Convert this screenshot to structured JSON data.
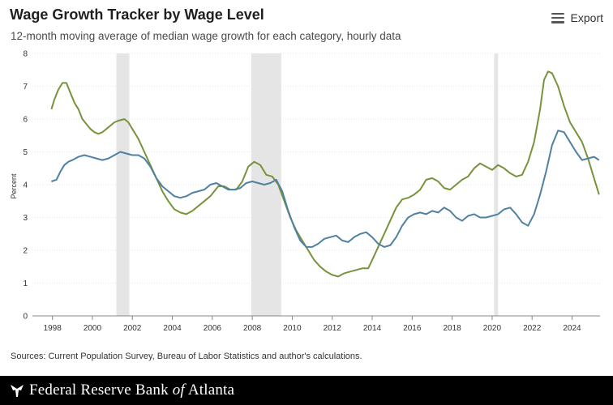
{
  "header": {
    "title": "Wage Growth Tracker by Wage Level",
    "subtitle": "12-month moving average of median wage growth for each category, hourly data",
    "export_label": "Export"
  },
  "footer": {
    "sources": "Sources: Current Population Survey, Bureau of Labor Statistics and author's calculations.",
    "bank_name_prefix": "Federal Reserve Bank",
    "bank_name_of": "of",
    "bank_name_suffix": "Atlanta"
  },
  "colors": {
    "green": "#77933C",
    "blue": "#4F81A0",
    "recession": "#E5E5E5"
  },
  "chart_data": {
    "type": "line",
    "ylabel": "Percent",
    "ylim": [
      0,
      8
    ],
    "xlim": [
      1997.0,
      2025.4
    ],
    "yticks": [
      0,
      1,
      2,
      3,
      4,
      5,
      6,
      7,
      8
    ],
    "xticks": [
      1998,
      2000,
      2002,
      2004,
      2006,
      2008,
      2010,
      2012,
      2014,
      2016,
      2018,
      2020,
      2022,
      2024
    ],
    "recessions": [
      [
        2001.2,
        2001.85
      ],
      [
        2007.95,
        2009.45
      ],
      [
        2020.1,
        2020.3
      ]
    ],
    "series": [
      {
        "color_key": "green",
        "points": [
          [
            1997.95,
            6.3
          ],
          [
            1998.1,
            6.6
          ],
          [
            1998.3,
            6.9
          ],
          [
            1998.5,
            7.1
          ],
          [
            1998.7,
            7.1
          ],
          [
            1998.9,
            6.8
          ],
          [
            1999.1,
            6.5
          ],
          [
            1999.3,
            6.3
          ],
          [
            1999.5,
            6.0
          ],
          [
            1999.7,
            5.85
          ],
          [
            1999.9,
            5.7
          ],
          [
            2000.1,
            5.6
          ],
          [
            2000.3,
            5.55
          ],
          [
            2000.5,
            5.6
          ],
          [
            2000.7,
            5.7
          ],
          [
            2000.9,
            5.8
          ],
          [
            2001.1,
            5.9
          ],
          [
            2001.3,
            5.95
          ],
          [
            2001.6,
            6.0
          ],
          [
            2001.8,
            5.9
          ],
          [
            2002.0,
            5.7
          ],
          [
            2002.3,
            5.4
          ],
          [
            2002.6,
            5.0
          ],
          [
            2002.9,
            4.6
          ],
          [
            2003.2,
            4.2
          ],
          [
            2003.5,
            3.8
          ],
          [
            2003.8,
            3.5
          ],
          [
            2004.1,
            3.25
          ],
          [
            2004.4,
            3.15
          ],
          [
            2004.7,
            3.1
          ],
          [
            2005.0,
            3.2
          ],
          [
            2005.3,
            3.35
          ],
          [
            2005.6,
            3.5
          ],
          [
            2005.9,
            3.65
          ],
          [
            2006.1,
            3.8
          ],
          [
            2006.3,
            3.95
          ],
          [
            2006.6,
            3.95
          ],
          [
            2006.9,
            3.85
          ],
          [
            2007.2,
            3.85
          ],
          [
            2007.5,
            4.1
          ],
          [
            2007.8,
            4.55
          ],
          [
            2008.1,
            4.7
          ],
          [
            2008.4,
            4.6
          ],
          [
            2008.7,
            4.3
          ],
          [
            2009.0,
            4.25
          ],
          [
            2009.3,
            4.0
          ],
          [
            2009.6,
            3.5
          ],
          [
            2009.9,
            3.0
          ],
          [
            2010.2,
            2.6
          ],
          [
            2010.5,
            2.3
          ],
          [
            2010.8,
            2.0
          ],
          [
            2011.1,
            1.7
          ],
          [
            2011.4,
            1.5
          ],
          [
            2011.7,
            1.35
          ],
          [
            2012.0,
            1.25
          ],
          [
            2012.3,
            1.2
          ],
          [
            2012.6,
            1.3
          ],
          [
            2012.9,
            1.35
          ],
          [
            2013.2,
            1.4
          ],
          [
            2013.5,
            1.45
          ],
          [
            2013.8,
            1.45
          ],
          [
            2014.0,
            1.7
          ],
          [
            2014.3,
            2.1
          ],
          [
            2014.6,
            2.5
          ],
          [
            2014.9,
            2.9
          ],
          [
            2015.2,
            3.3
          ],
          [
            2015.5,
            3.55
          ],
          [
            2015.8,
            3.6
          ],
          [
            2016.1,
            3.7
          ],
          [
            2016.4,
            3.85
          ],
          [
            2016.7,
            4.15
          ],
          [
            2017.0,
            4.2
          ],
          [
            2017.3,
            4.1
          ],
          [
            2017.6,
            3.9
          ],
          [
            2017.9,
            3.85
          ],
          [
            2018.2,
            4.0
          ],
          [
            2018.5,
            4.15
          ],
          [
            2018.8,
            4.25
          ],
          [
            2019.1,
            4.5
          ],
          [
            2019.4,
            4.65
          ],
          [
            2019.7,
            4.55
          ],
          [
            2020.0,
            4.45
          ],
          [
            2020.3,
            4.6
          ],
          [
            2020.6,
            4.5
          ],
          [
            2020.9,
            4.35
          ],
          [
            2021.2,
            4.25
          ],
          [
            2021.5,
            4.3
          ],
          [
            2021.8,
            4.7
          ],
          [
            2022.1,
            5.3
          ],
          [
            2022.4,
            6.3
          ],
          [
            2022.6,
            7.2
          ],
          [
            2022.8,
            7.45
          ],
          [
            2023.0,
            7.4
          ],
          [
            2023.3,
            7.0
          ],
          [
            2023.6,
            6.4
          ],
          [
            2023.9,
            5.9
          ],
          [
            2024.2,
            5.6
          ],
          [
            2024.5,
            5.3
          ],
          [
            2024.8,
            4.8
          ],
          [
            2025.1,
            4.2
          ],
          [
            2025.35,
            3.7
          ]
        ]
      },
      {
        "color_key": "blue",
        "points": [
          [
            1997.95,
            4.1
          ],
          [
            1998.2,
            4.15
          ],
          [
            1998.4,
            4.4
          ],
          [
            1998.6,
            4.6
          ],
          [
            1998.8,
            4.7
          ],
          [
            1999.0,
            4.75
          ],
          [
            1999.3,
            4.85
          ],
          [
            1999.6,
            4.9
          ],
          [
            1999.9,
            4.85
          ],
          [
            2000.2,
            4.8
          ],
          [
            2000.5,
            4.75
          ],
          [
            2000.8,
            4.8
          ],
          [
            2001.1,
            4.9
          ],
          [
            2001.4,
            5.0
          ],
          [
            2001.7,
            4.95
          ],
          [
            2002.0,
            4.9
          ],
          [
            2002.3,
            4.9
          ],
          [
            2002.6,
            4.8
          ],
          [
            2002.9,
            4.55
          ],
          [
            2003.2,
            4.2
          ],
          [
            2003.5,
            3.95
          ],
          [
            2003.8,
            3.8
          ],
          [
            2004.1,
            3.65
          ],
          [
            2004.4,
            3.6
          ],
          [
            2004.7,
            3.65
          ],
          [
            2005.0,
            3.75
          ],
          [
            2005.3,
            3.8
          ],
          [
            2005.6,
            3.85
          ],
          [
            2005.9,
            4.0
          ],
          [
            2006.2,
            4.05
          ],
          [
            2006.5,
            3.95
          ],
          [
            2006.8,
            3.85
          ],
          [
            2007.1,
            3.85
          ],
          [
            2007.4,
            3.9
          ],
          [
            2007.7,
            4.05
          ],
          [
            2008.0,
            4.1
          ],
          [
            2008.3,
            4.05
          ],
          [
            2008.6,
            4.0
          ],
          [
            2008.9,
            4.05
          ],
          [
            2009.2,
            4.15
          ],
          [
            2009.5,
            3.8
          ],
          [
            2009.8,
            3.2
          ],
          [
            2010.1,
            2.7
          ],
          [
            2010.4,
            2.3
          ],
          [
            2010.7,
            2.1
          ],
          [
            2011.0,
            2.1
          ],
          [
            2011.3,
            2.2
          ],
          [
            2011.6,
            2.35
          ],
          [
            2011.9,
            2.4
          ],
          [
            2012.2,
            2.45
          ],
          [
            2012.5,
            2.3
          ],
          [
            2012.8,
            2.25
          ],
          [
            2013.1,
            2.4
          ],
          [
            2013.4,
            2.5
          ],
          [
            2013.7,
            2.55
          ],
          [
            2014.0,
            2.4
          ],
          [
            2014.3,
            2.2
          ],
          [
            2014.6,
            2.1
          ],
          [
            2014.9,
            2.15
          ],
          [
            2015.2,
            2.4
          ],
          [
            2015.5,
            2.75
          ],
          [
            2015.8,
            3.0
          ],
          [
            2016.1,
            3.1
          ],
          [
            2016.4,
            3.15
          ],
          [
            2016.7,
            3.1
          ],
          [
            2017.0,
            3.2
          ],
          [
            2017.3,
            3.15
          ],
          [
            2017.6,
            3.3
          ],
          [
            2017.9,
            3.2
          ],
          [
            2018.2,
            3.0
          ],
          [
            2018.5,
            2.9
          ],
          [
            2018.8,
            3.05
          ],
          [
            2019.1,
            3.1
          ],
          [
            2019.4,
            3.0
          ],
          [
            2019.7,
            3.0
          ],
          [
            2020.0,
            3.05
          ],
          [
            2020.3,
            3.1
          ],
          [
            2020.6,
            3.25
          ],
          [
            2020.9,
            3.3
          ],
          [
            2021.2,
            3.1
          ],
          [
            2021.5,
            2.85
          ],
          [
            2021.8,
            2.75
          ],
          [
            2022.1,
            3.1
          ],
          [
            2022.4,
            3.7
          ],
          [
            2022.7,
            4.4
          ],
          [
            2023.0,
            5.2
          ],
          [
            2023.3,
            5.65
          ],
          [
            2023.6,
            5.6
          ],
          [
            2023.9,
            5.3
          ],
          [
            2024.2,
            5.0
          ],
          [
            2024.5,
            4.75
          ],
          [
            2024.8,
            4.8
          ],
          [
            2025.1,
            4.85
          ],
          [
            2025.35,
            4.75
          ]
        ]
      }
    ]
  }
}
